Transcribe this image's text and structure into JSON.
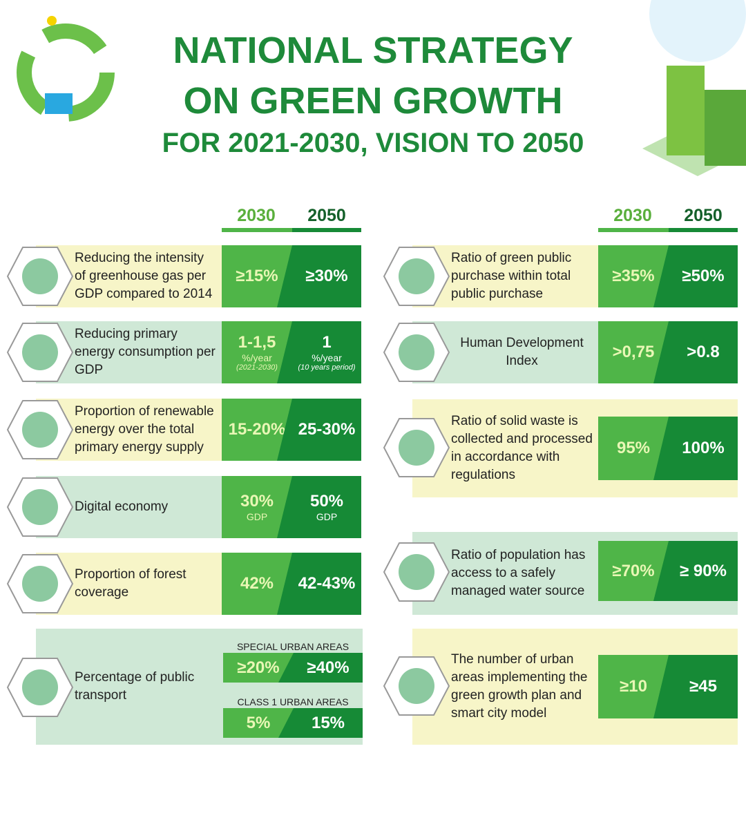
{
  "header": {
    "title_line1": "NATIONAL STRATEGY",
    "title_line2": "ON GREEN GROWTH",
    "subtitle": "FOR 2021-2030, VISION TO 2050"
  },
  "left": {
    "columns": [
      "2030",
      "2050"
    ],
    "rows": [
      {
        "label": "Reducing the intensity of greenhouse gas per GDP compared to 2014",
        "v2030": [
          "≥15%"
        ],
        "v2050": [
          "≥30%"
        ]
      },
      {
        "label": "Reducing primary energy consumption per GDP",
        "v2030": [
          "1-1,5",
          "%/year",
          "(2021-2030)"
        ],
        "v2050": [
          "1",
          "%/year",
          "(10 years period)"
        ]
      },
      {
        "label": "Proportion of renewable energy over the total primary energy supply",
        "v2030": [
          "15-20%"
        ],
        "v2050": [
          "25-30%"
        ]
      },
      {
        "label": "Digital economy",
        "v2030": [
          "30%",
          "GDP"
        ],
        "v2050": [
          "50%",
          "GDP"
        ]
      },
      {
        "label": "Proportion of forest coverage",
        "v2030": [
          "42%"
        ],
        "v2050": [
          "42-43%"
        ]
      }
    ],
    "transport": {
      "label": "Percentage of public transport",
      "groups": [
        {
          "label": "SPECIAL URBAN AREAS",
          "v2030": "≥20%",
          "v2050": "≥40%"
        },
        {
          "label": "CLASS 1 URBAN AREAS",
          "v2030": "5%",
          "v2050": "15%"
        }
      ]
    }
  },
  "right": {
    "columns": [
      "2030",
      "2050"
    ],
    "rows": [
      {
        "label": "Ratio of green public purchase within total public purchase",
        "v2030": [
          "≥35%"
        ],
        "v2050": [
          "≥50%"
        ]
      },
      {
        "label": "Human Development Index",
        "v2030": [
          ">0,75"
        ],
        "v2050": [
          ">0.8"
        ]
      },
      {
        "label": "Ratio of solid waste is collected and processed in accordance with regulations",
        "v2030": [
          "95%"
        ],
        "v2050": [
          "100%"
        ]
      },
      {
        "label": "Ratio of population has access to a safely managed water source",
        "v2030": [
          "≥70%"
        ],
        "v2050": [
          "≥ 90%"
        ]
      },
      {
        "label": "The number of urban areas implementing the green growth plan and smart city model",
        "v2030": [
          "≥10"
        ],
        "v2050": [
          "≥45"
        ]
      }
    ]
  }
}
